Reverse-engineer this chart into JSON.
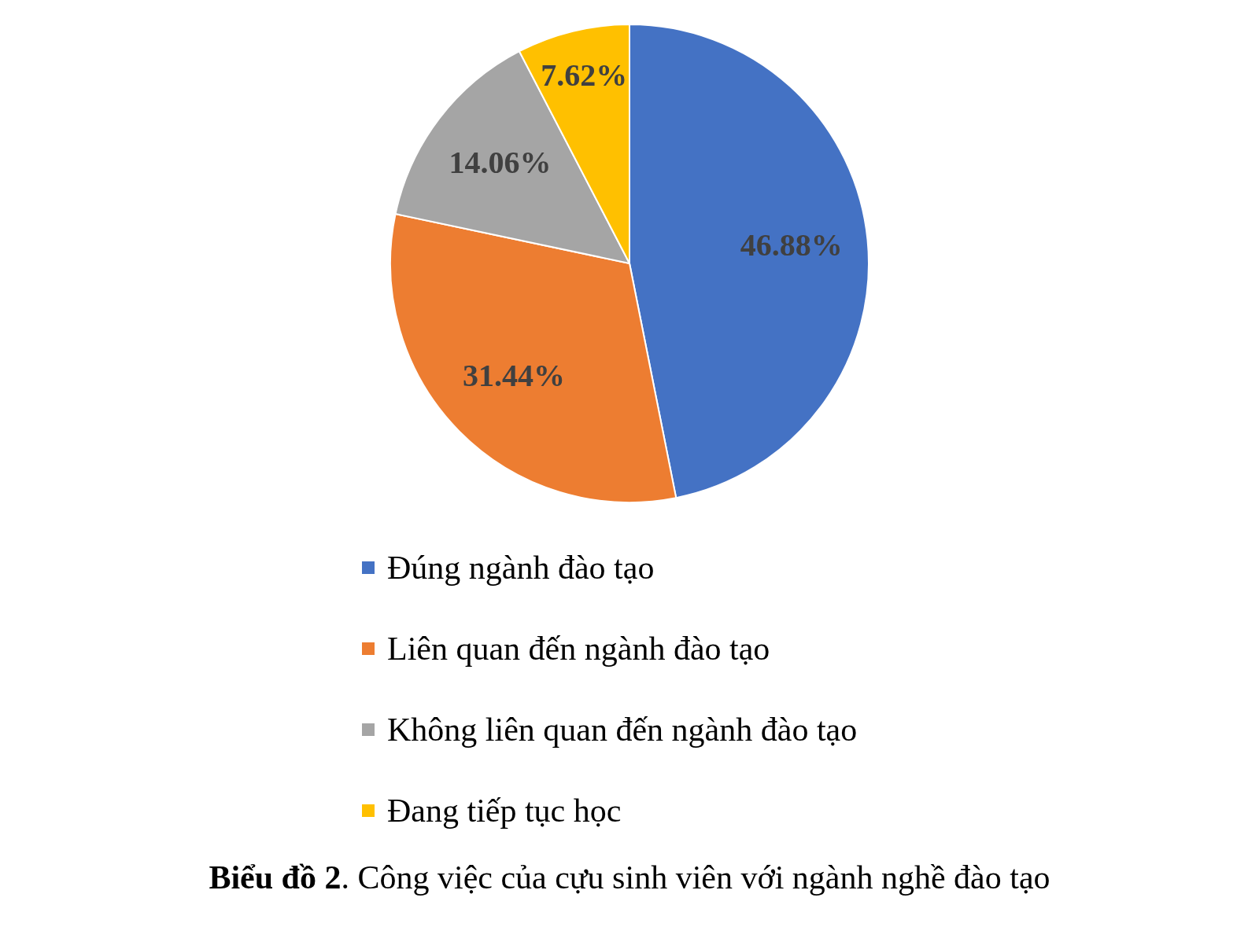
{
  "chart_data": {
    "type": "pie",
    "title": "Biểu đồ 2. Công việc của cựu sinh viên với ngành nghề đào tạo",
    "categories": [
      "Đúng ngành đào tạo",
      "Liên quan đến ngành đào tạo",
      "Không liên quan đến ngành đào tạo",
      "Đang tiếp tục học"
    ],
    "values": [
      46.88,
      31.44,
      14.06,
      7.62
    ],
    "colors": [
      "#4472c4",
      "#ed7d31",
      "#a5a5a5",
      "#ffc000"
    ],
    "value_labels": [
      "46.88%",
      "31.44%",
      "14.06%",
      "7.62%"
    ],
    "legend": "bottom"
  }
}
